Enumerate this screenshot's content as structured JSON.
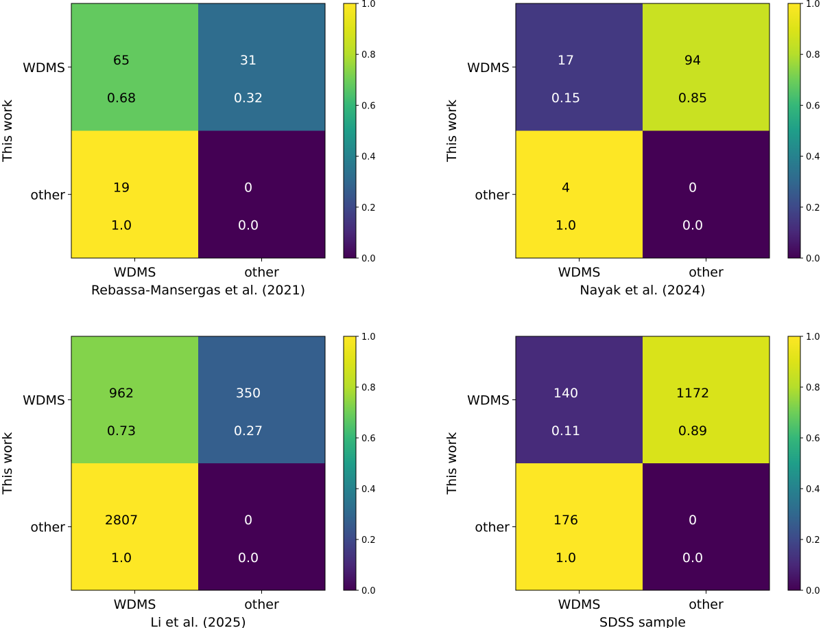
{
  "chart_data": [
    {
      "type": "heatmap",
      "row_labels": [
        "WDMS",
        "other"
      ],
      "col_labels": [
        "WDMS",
        "other"
      ],
      "ylabel": "This work",
      "xlabel": "Rebassa-Mansergas et al. (2021)",
      "counts": [
        [
          65,
          31
        ],
        [
          19,
          0
        ]
      ],
      "fractions": [
        [
          "0.68",
          "0.32"
        ],
        [
          "1.0",
          "0.0"
        ]
      ],
      "colorbar": {
        "range": [
          0,
          1
        ],
        "ticks": [
          "0.0",
          "0.2",
          "0.4",
          "0.6",
          "0.8",
          "1.0"
        ]
      }
    },
    {
      "type": "heatmap",
      "row_labels": [
        "WDMS",
        "other"
      ],
      "col_labels": [
        "WDMS",
        "other"
      ],
      "ylabel": "This work",
      "xlabel": "Nayak et al. (2024)",
      "counts": [
        [
          17,
          94
        ],
        [
          4,
          0
        ]
      ],
      "fractions": [
        [
          "0.15",
          "0.85"
        ],
        [
          "1.0",
          "0.0"
        ]
      ],
      "colorbar": {
        "range": [
          0,
          1
        ],
        "ticks": [
          "0.0",
          "0.2",
          "0.4",
          "0.6",
          "0.8",
          "1.0"
        ]
      }
    },
    {
      "type": "heatmap",
      "row_labels": [
        "WDMS",
        "other"
      ],
      "col_labels": [
        "WDMS",
        "other"
      ],
      "ylabel": "This work",
      "xlabel": "Li et al. (2025)",
      "counts": [
        [
          962,
          350
        ],
        [
          2807,
          0
        ]
      ],
      "fractions": [
        [
          "0.73",
          "0.27"
        ],
        [
          "1.0",
          "0.0"
        ]
      ],
      "colorbar": {
        "range": [
          0,
          1
        ],
        "ticks": [
          "0.0",
          "0.2",
          "0.4",
          "0.6",
          "0.8",
          "1.0"
        ]
      }
    },
    {
      "type": "heatmap",
      "row_labels": [
        "WDMS",
        "other"
      ],
      "col_labels": [
        "WDMS",
        "other"
      ],
      "ylabel": "This work",
      "xlabel": "SDSS sample",
      "counts": [
        [
          140,
          1172
        ],
        [
          176,
          0
        ]
      ],
      "fractions": [
        [
          "0.11",
          "0.89"
        ],
        [
          "1.0",
          "0.0"
        ]
      ],
      "colorbar": {
        "range": [
          0,
          1
        ],
        "ticks": [
          "0.0",
          "0.2",
          "0.4",
          "0.6",
          "0.8",
          "1.0"
        ]
      }
    }
  ]
}
